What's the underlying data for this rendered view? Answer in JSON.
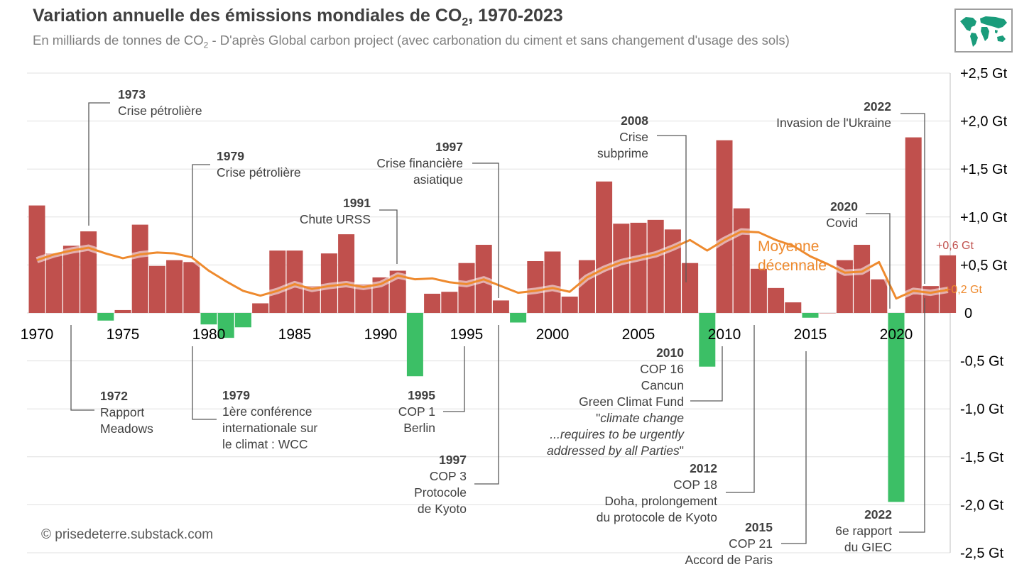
{
  "title_main": "Variation annuelle des émissions mondiales de CO",
  "title_sub": "2",
  "title_tail": ", 1970-2023",
  "subtitle_main": "En milliards de tonnes de CO",
  "subtitle_sub": "2",
  "subtitle_tail": " - D'après Global carbon project (avec carbonation du ciment et sans changement d'usage des sols)",
  "credit": "© prisedeterre.substack.com",
  "logo_icon": "world-map-icon",
  "colors": {
    "positive": "#c0504d",
    "negative": "#3cbf66",
    "average": "#ee8a2e",
    "grid": "#e0e0e0",
    "connector": "#595959"
  },
  "chart_data": {
    "type": "bar",
    "title": "Variation annuelle des émissions mondiales de CO2, 1970-2023",
    "xlabel": "",
    "ylabel": "Gt CO2",
    "ylim": [
      -2.5,
      2.5
    ],
    "grid": true,
    "x": [
      1970,
      1971,
      1972,
      1973,
      1974,
      1975,
      1976,
      1977,
      1978,
      1979,
      1980,
      1981,
      1982,
      1983,
      1984,
      1985,
      1986,
      1987,
      1988,
      1989,
      1990,
      1991,
      1992,
      1993,
      1994,
      1995,
      1996,
      1997,
      1998,
      1999,
      2000,
      2001,
      2002,
      2003,
      2004,
      2005,
      2006,
      2007,
      2008,
      2009,
      2010,
      2011,
      2012,
      2013,
      2014,
      2015,
      2016,
      2017,
      2018,
      2019,
      2020,
      2021,
      2022,
      2023
    ],
    "x_ticks": [
      "1970",
      "1975",
      "1980",
      "1985",
      "1990",
      "1995",
      "2000",
      "2005",
      "2010",
      "2015",
      "2020"
    ],
    "y_ticks": [
      "+2,5 Gt",
      "+2,0 Gt",
      "+1,5 Gt",
      "+1,0 Gt",
      "+0,5 Gt",
      "0",
      "-0,5 Gt",
      "-1,0 Gt",
      "-1,5 Gt",
      "-2,0 Gt",
      "-2,5 Gt"
    ],
    "y_tick_values": [
      2.5,
      2.0,
      1.5,
      1.0,
      0.5,
      0,
      -0.5,
      -1.0,
      -1.5,
      -2.0,
      -2.5
    ],
    "series": [
      {
        "name": "Variation annuelle",
        "values": [
          1.12,
          0.62,
          0.7,
          0.85,
          -0.08,
          0.03,
          0.92,
          0.49,
          0.55,
          0.53,
          -0.12,
          -0.26,
          -0.15,
          0.1,
          0.65,
          0.65,
          0.28,
          0.62,
          0.82,
          0.3,
          0.37,
          0.44,
          -0.66,
          0.2,
          0.22,
          0.52,
          0.71,
          0.13,
          -0.1,
          0.54,
          0.64,
          0.17,
          0.55,
          1.37,
          0.93,
          0.94,
          0.97,
          0.87,
          0.52,
          -0.56,
          1.8,
          1.09,
          0.46,
          0.26,
          0.11,
          -0.05,
          0.0,
          0.55,
          0.71,
          0.35,
          -1.97,
          1.83,
          0.28,
          0.6
        ]
      },
      {
        "name": "Moyenne décennale",
        "values": [
          0.55,
          0.61,
          0.65,
          0.68,
          0.62,
          0.57,
          0.61,
          0.63,
          0.62,
          0.58,
          0.44,
          0.33,
          0.23,
          0.18,
          0.23,
          0.3,
          0.25,
          0.28,
          0.3,
          0.27,
          0.3,
          0.39,
          0.35,
          0.36,
          0.32,
          0.3,
          0.35,
          0.28,
          0.21,
          0.23,
          0.26,
          0.22,
          0.37,
          0.46,
          0.53,
          0.57,
          0.61,
          0.68,
          0.76,
          0.65,
          0.76,
          0.85,
          0.84,
          0.76,
          0.7,
          0.59,
          0.51,
          0.42,
          0.43,
          0.53,
          0.15,
          0.23,
          0.21,
          0.24
        ]
      }
    ],
    "series_label": "Moyenne\ndécennale",
    "series_label_1": "Moyenne",
    "series_label_2": "décennale",
    "end_labels": {
      "last_value": "+0,6 Gt",
      "last_average": "+0,2 Gt"
    },
    "annotations_top": [
      {
        "year": "1973",
        "lines": [
          "Crise pétrolière"
        ]
      },
      {
        "year": "1979",
        "lines": [
          "Crise pétrolière"
        ]
      },
      {
        "year": "1991",
        "lines": [
          "Chute URSS"
        ]
      },
      {
        "year": "1997",
        "lines": [
          "Crise financière",
          "asiatique"
        ]
      },
      {
        "year": "2008",
        "lines": [
          "Crise",
          "subprime"
        ]
      },
      {
        "year": "2020",
        "lines": [
          "Covid"
        ]
      },
      {
        "year": "2022",
        "lines": [
          "Invasion de l'Ukraine"
        ]
      }
    ],
    "annotations_bottom": [
      {
        "year": "1972",
        "lines": [
          "Rapport",
          "Meadows"
        ]
      },
      {
        "year": "1979",
        "lines": [
          "1ère conférence",
          "internationale sur",
          "le climat : WCC"
        ]
      },
      {
        "year": "1995",
        "lines": [
          "COP 1",
          "Berlin"
        ]
      },
      {
        "year": "1997",
        "lines": [
          "COP 3",
          "Protocole",
          "de Kyoto"
        ]
      },
      {
        "year": "2010",
        "lines": [
          "COP 16",
          "Cancun",
          "Green Climat Fund"
        ]
      },
      {
        "year": "2012",
        "lines": [
          "COP 18",
          "Doha, prolongement",
          "du protocole de Kyoto"
        ]
      },
      {
        "year": "2015",
        "lines": [
          "COP 21",
          "Accord de Paris"
        ]
      },
      {
        "year": "2022",
        "lines": [
          "6e rapport",
          "du GIEC"
        ]
      }
    ],
    "quote_open": "\"",
    "quote_line1": "climate change",
    "quote_line2": "...requires to be urgently",
    "quote_line3": "addressed by all Parties",
    "quote_close": "\""
  }
}
